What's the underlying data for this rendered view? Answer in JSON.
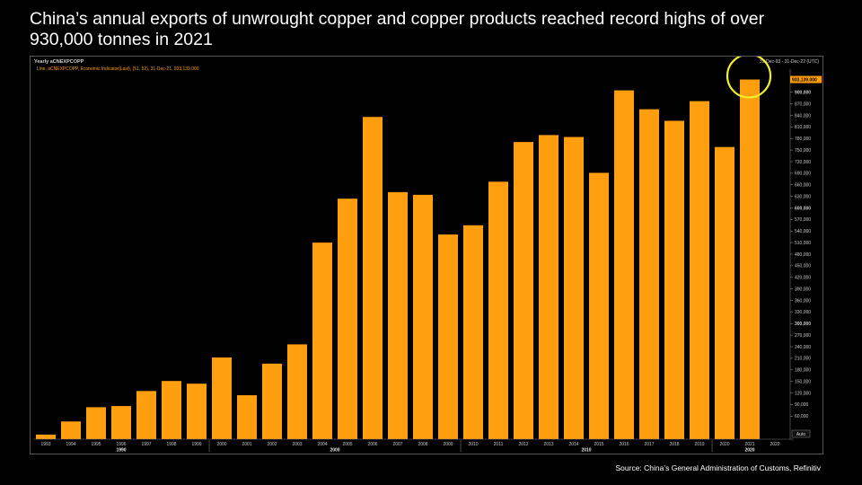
{
  "headline": "China’s annual exports of unwrought copper and copper products reached record highs of over 930,000 tonnes in 2021",
  "source": "Source: China’s General Administration of Customs, Refinitiv",
  "colors": {
    "bar": "#FF9F0F",
    "highlight_ring": "#F4EE2A",
    "axis_text": "#C9C9C9"
  },
  "chart_data": {
    "type": "bar",
    "panel_title": "Yearly aCNEXPCOPP",
    "date_range": "31-Dec-93 - 31-Dec-22 (UTC)",
    "legend_text": "Line, aCNEXPCOPP, Economic Indicator(Last), (51, 52), 31-Dec-21, 933,139.000",
    "last_value_label": "933,139.000",
    "categories": [
      "1993",
      "1994",
      "1995",
      "1996",
      "1997",
      "1998",
      "1999",
      "2000",
      "2001",
      "2002",
      "2003",
      "2004",
      "2005",
      "2006",
      "2007",
      "2008",
      "2009",
      "2010",
      "2011",
      "2012",
      "2013",
      "2014",
      "2015",
      "2016",
      "2017",
      "2018",
      "2019",
      "2020",
      "2021"
    ],
    "values": [
      12000,
      46000,
      83000,
      86000,
      125000,
      151000,
      144000,
      212000,
      114000,
      196000,
      246000,
      510000,
      624000,
      836000,
      641000,
      634000,
      531000,
      555000,
      668000,
      771000,
      789000,
      784000,
      691000,
      905000,
      856000,
      826000,
      877000,
      758000,
      933139
    ],
    "x_tick_labels": [
      "1993",
      "1994",
      "1995",
      "1996",
      "1997",
      "1998",
      "1999",
      "2000",
      "2001",
      "2002",
      "2003",
      "2004",
      "2005",
      "2006",
      "2007",
      "2008",
      "2009",
      "2010",
      "2011",
      "2012",
      "2013",
      "2014",
      "2015",
      "2016",
      "2017",
      "2018",
      "2019",
      "2020",
      "2021",
      "2022"
    ],
    "decade_labels": [
      "1990",
      "2000",
      "2010",
      "2020"
    ],
    "y_tick_labels": [
      "60,000",
      "90,000",
      "120,000",
      "150,000",
      "180,000",
      "210,000",
      "240,000",
      "270,000",
      "300,000",
      "330,000",
      "360,000",
      "390,000",
      "420,000",
      "450,000",
      "480,000",
      "510,000",
      "540,000",
      "570,000",
      "600,000",
      "630,000",
      "660,000",
      "690,000",
      "720,000",
      "750,000",
      "780,000",
      "810,000",
      "840,000",
      "870,000",
      "900,000"
    ],
    "ylim": [
      0,
      960000
    ],
    "axis_unit_label": "Auto",
    "highlight_category": "2021",
    "grid": false
  }
}
